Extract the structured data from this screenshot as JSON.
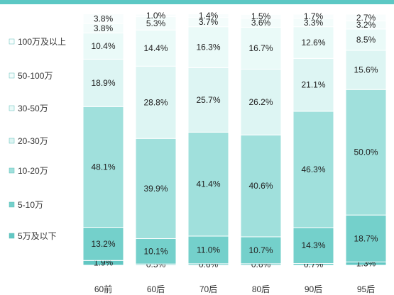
{
  "chart_data": {
    "type": "bar",
    "stacked": true,
    "percent": true,
    "title": "",
    "xlabel": "",
    "ylabel": "",
    "ylim": [
      0,
      100
    ],
    "legend_position": "left",
    "categories": [
      "60前",
      "60后",
      "70后",
      "80后",
      "90后",
      "95后"
    ],
    "series": [
      {
        "name": "5万及以下",
        "color": "#62c7c3",
        "values": [
          1.9,
          0.5,
          0.6,
          0.6,
          0.7,
          1.3
        ],
        "labels": [
          "1.9%",
          "0.5%",
          "0.6%",
          "0.6%",
          "0.7%",
          "1.3%"
        ]
      },
      {
        "name": "5-10万",
        "color": "#74d0cb",
        "values": [
          13.2,
          10.1,
          11.0,
          10.7,
          14.3,
          18.7
        ],
        "labels": [
          "13.2%",
          "10.1%",
          "11.0%",
          "10.7%",
          "14.3%",
          "18.7%"
        ]
      },
      {
        "name": "10-20万",
        "color": "#a0e0dc",
        "values": [
          48.1,
          39.9,
          41.4,
          40.6,
          46.3,
          50.0
        ],
        "labels": [
          "48.1%",
          "39.9%",
          "41.4%",
          "40.6%",
          "46.3%",
          "50.0%"
        ]
      },
      {
        "name": "20-30万",
        "color": "#ddf5f3",
        "values": [
          18.9,
          28.8,
          25.7,
          26.2,
          21.1,
          15.6
        ],
        "labels": [
          "18.9%",
          "28.8%",
          "25.7%",
          "26.2%",
          "21.1%",
          "15.6%"
        ]
      },
      {
        "name": "30-50万",
        "color": "#eafaf8",
        "values": [
          10.4,
          14.4,
          16.3,
          16.7,
          12.6,
          8.5
        ],
        "labels": [
          "10.4%",
          "14.4%",
          "16.3%",
          "16.7%",
          "12.6%",
          "8.5%"
        ]
      },
      {
        "name": "50-100万",
        "color": "#f3fcfb",
        "values": [
          3.8,
          5.3,
          3.7,
          3.6,
          3.3,
          3.2
        ],
        "labels": [
          "3.8%",
          "5.3%",
          "3.7%",
          "3.6%",
          "3.3%",
          "3.2%"
        ]
      },
      {
        "name": "100万及以上",
        "color": "#f8fdfd",
        "values": [
          3.8,
          1.0,
          1.4,
          1.5,
          1.7,
          2.7
        ],
        "labels": [
          "3.8%",
          "1.0%",
          "1.4%",
          "1.5%",
          "1.7%",
          "2.7%"
        ]
      }
    ]
  }
}
